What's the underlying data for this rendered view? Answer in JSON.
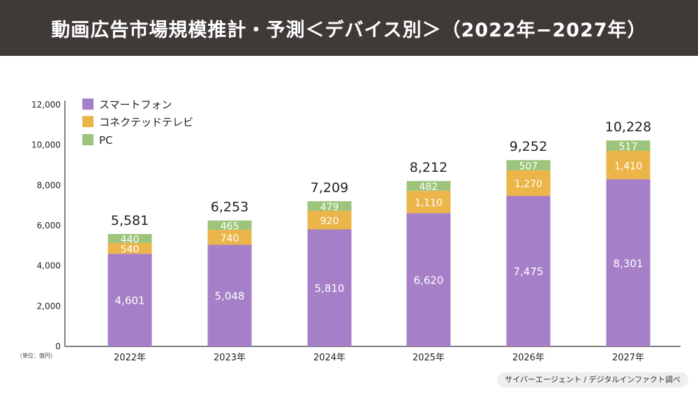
{
  "title": "動画広告市場規模推計・予測＜デバイス別＞（2022年−2027年）",
  "source": "サイバーエージェント / デジタルインファクト調べ",
  "colors": {
    "smartphone": "#a57fc7",
    "connected_tv": "#ebb54a",
    "pc": "#9cc47a",
    "title_bg": "#3f3a38"
  },
  "chart_data": {
    "type": "bar",
    "stacked": true,
    "categories": [
      "2022年",
      "2023年",
      "2024年",
      "2025年",
      "2026年",
      "2027年"
    ],
    "series": [
      {
        "name": "スマートフォン",
        "values": [
          4601,
          5048,
          5810,
          6620,
          7475,
          8301
        ]
      },
      {
        "name": "コネクテッドテレビ",
        "values": [
          540,
          740,
          920,
          1110,
          1270,
          1410
        ]
      },
      {
        "name": "PC",
        "values": [
          440,
          465,
          479,
          482,
          507,
          517
        ]
      }
    ],
    "value_labels": [
      [
        "4,601",
        "5,048",
        "5,810",
        "6,620",
        "7,475",
        "8,301"
      ],
      [
        "540",
        "740",
        "920",
        "1,110",
        "1,270",
        "1,410"
      ],
      [
        "440",
        "465",
        "479",
        "482",
        "507",
        "517"
      ]
    ],
    "totals": [
      5581,
      6253,
      7209,
      8212,
      9252,
      10228
    ],
    "total_labels": [
      "5,581",
      "6,253",
      "7,209",
      "8,212",
      "9,252",
      "10,228"
    ],
    "yticks": [
      0,
      2000,
      4000,
      6000,
      8000,
      10000,
      12000
    ],
    "ytick_labels": [
      "0",
      "2,000",
      "4,000",
      "6,000",
      "8,000",
      "10,000",
      "12,000"
    ],
    "ylim": [
      0,
      12000
    ],
    "unit_note": "（単位：億円）",
    "legend_position": "top-left",
    "grid": false
  }
}
